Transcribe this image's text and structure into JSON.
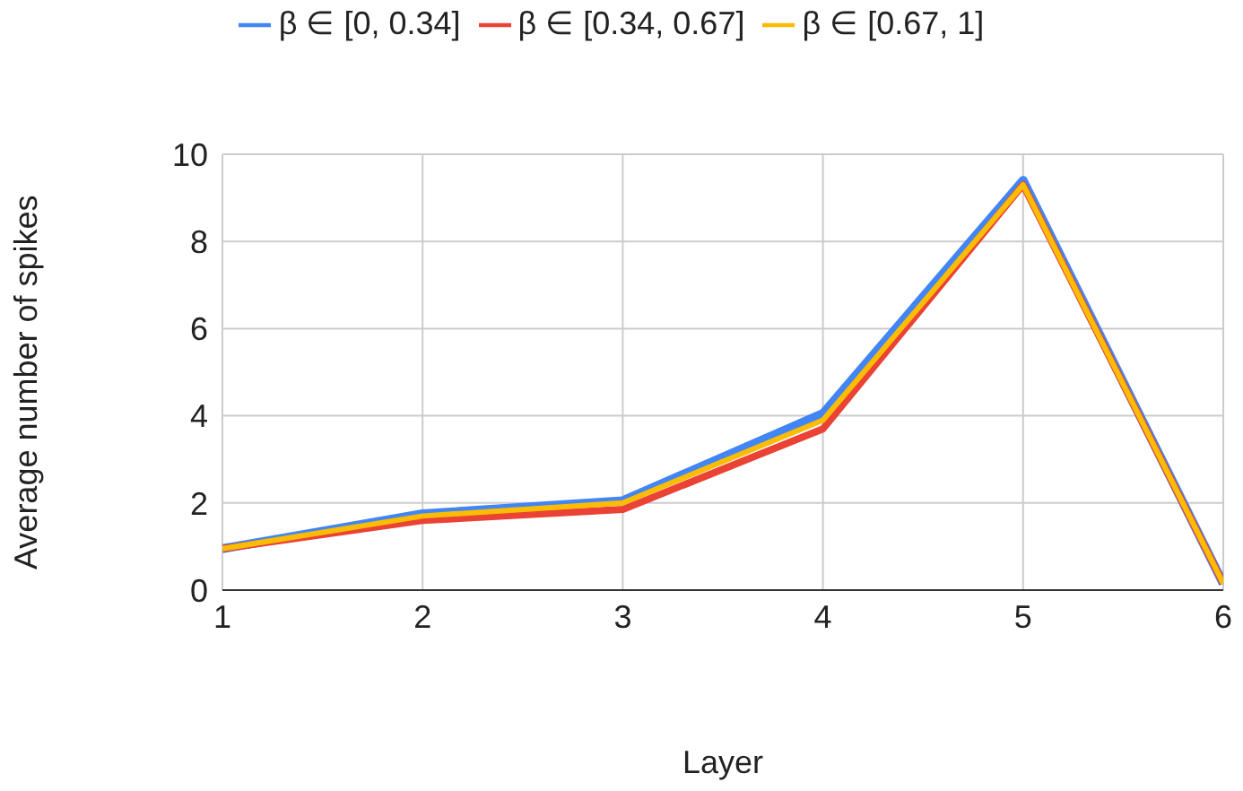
{
  "chart_data": {
    "type": "line",
    "xlabel": "Layer",
    "ylabel": "Average number of spikes",
    "x": [
      1,
      2,
      3,
      4,
      5,
      6
    ],
    "xlim": [
      1,
      6
    ],
    "xticks": [
      1,
      2,
      3,
      4,
      5,
      6
    ],
    "ylim": [
      0,
      10
    ],
    "yticks": [
      0,
      2,
      4,
      6,
      8,
      10
    ],
    "series": [
      {
        "name": "β ∈ [0, 0.34]",
        "color": "#4285f4",
        "values": [
          0.95,
          1.75,
          2.05,
          4.05,
          9.4,
          0.15
        ]
      },
      {
        "name": "β ∈ [0.34, 0.67]",
        "color": "#ea4335",
        "values": [
          0.95,
          1.6,
          1.85,
          3.7,
          9.3,
          0.15
        ]
      },
      {
        "name": "β ∈ [0.67, 1]",
        "color": "#fbbc04",
        "values": [
          0.95,
          1.7,
          2.0,
          3.9,
          9.3,
          0.15
        ]
      }
    ],
    "grid": true,
    "legend": "top",
    "marker": "none",
    "line_style": "solid"
  }
}
